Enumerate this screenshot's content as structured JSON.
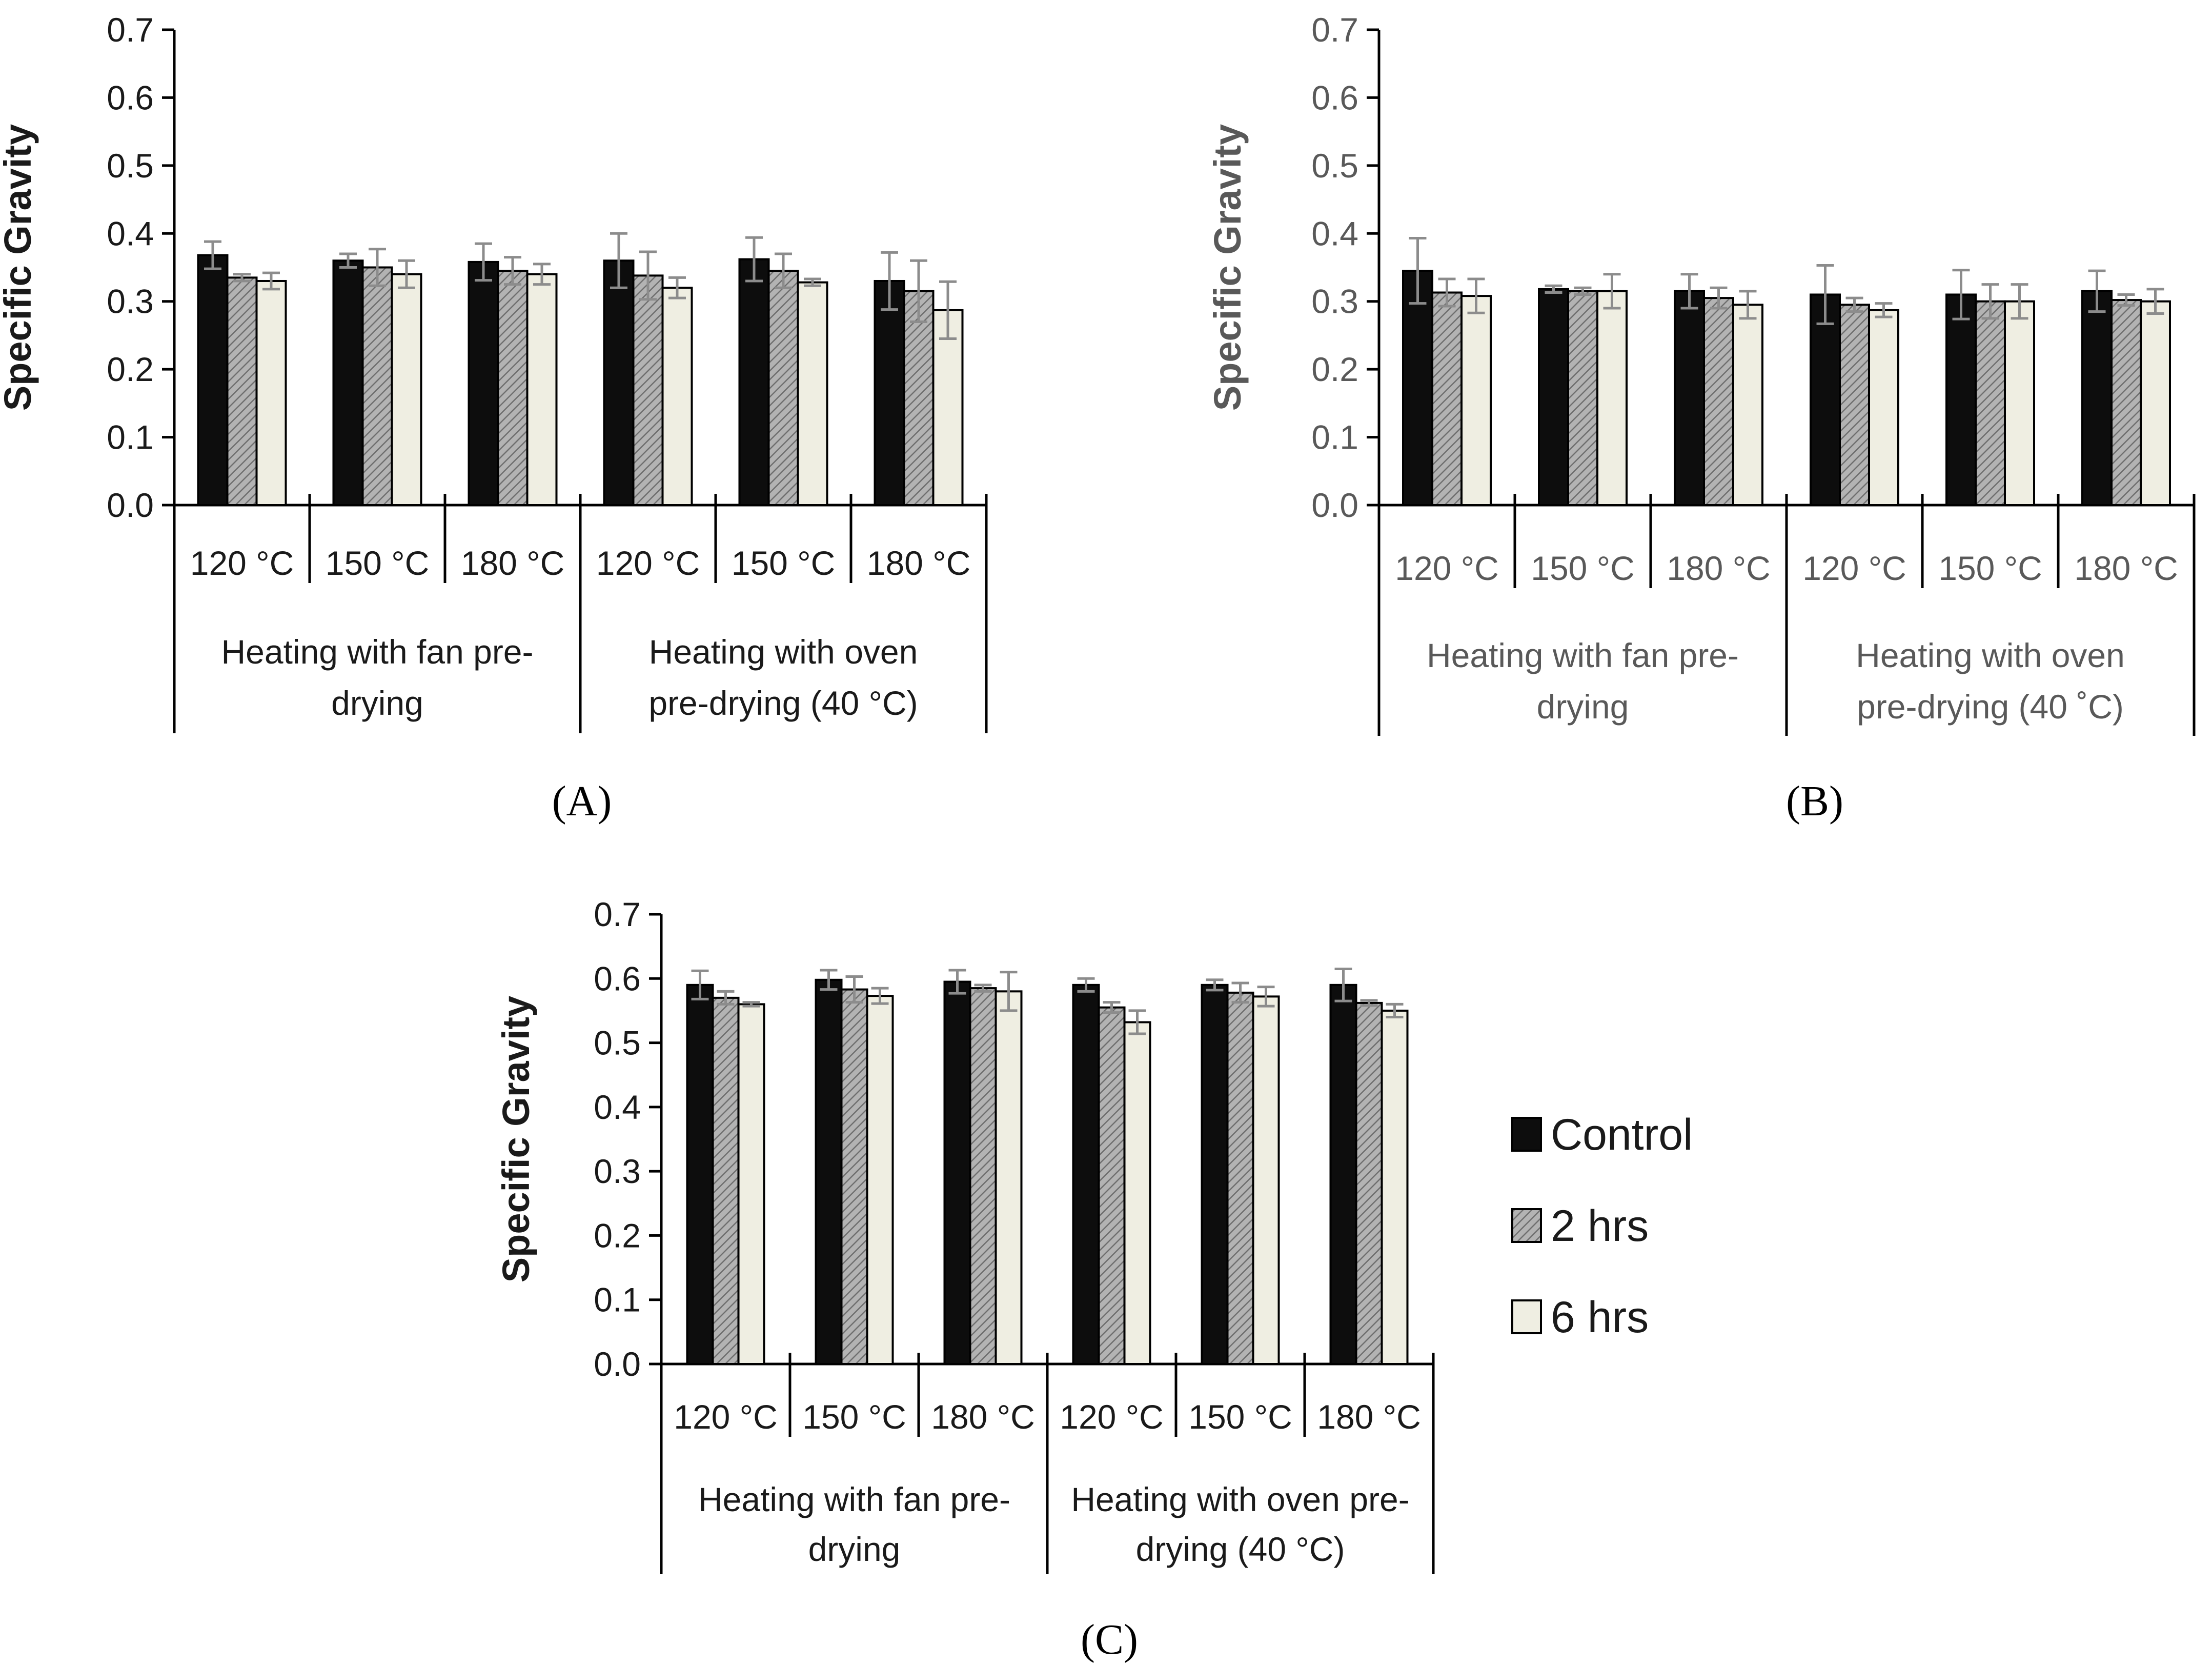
{
  "colors": {
    "control": "#0d0d0d",
    "hrs2": "#a6a6a6",
    "hrs6": "#efeee2",
    "error_bar": "#8c8c8c",
    "text_dark": "#1a1a1a",
    "text_grey": "#595959"
  },
  "legend": {
    "placement": "right of panel C",
    "entries": [
      {
        "key": "control",
        "label": "Control",
        "pattern": "solid"
      },
      {
        "key": "hrs2",
        "label": "2 hrs",
        "pattern": "hatched"
      },
      {
        "key": "hrs6",
        "label": "6 hrs",
        "pattern": "solid"
      }
    ]
  },
  "chart_data": [
    {
      "type": "bar",
      "panel_label": "(A)",
      "ylabel": "Specific Gravity",
      "ylim": [
        0,
        0.7
      ],
      "yticks": [
        "0.0",
        "0.1",
        "0.2",
        "0.3",
        "0.4",
        "0.5",
        "0.6",
        "0.7"
      ],
      "grid": false,
      "categories": [
        "120 °C",
        "150 °C",
        "180 °C",
        "120 °C",
        "150 °C",
        "180 °C"
      ],
      "groups": [
        {
          "label_lines": [
            "Heating with fan pre-",
            "drying"
          ],
          "span": 3
        },
        {
          "label_lines": [
            "Heating with oven",
            "pre-drying (40 °C)"
          ],
          "span": 3
        }
      ],
      "series": [
        {
          "name": "Control",
          "key": "control",
          "values": [
            0.368,
            0.36,
            0.358,
            0.36,
            0.362,
            0.33
          ],
          "errors": [
            0.02,
            0.01,
            0.027,
            0.04,
            0.032,
            0.042
          ]
        },
        {
          "name": "2 hrs",
          "key": "hrs2",
          "values": [
            0.335,
            0.35,
            0.345,
            0.338,
            0.345,
            0.315
          ],
          "errors": [
            0.005,
            0.027,
            0.02,
            0.035,
            0.025,
            0.045
          ]
        },
        {
          "name": "6 hrs",
          "key": "hrs6",
          "values": [
            0.33,
            0.34,
            0.34,
            0.32,
            0.328,
            0.287
          ],
          "errors": [
            0.012,
            0.02,
            0.015,
            0.015,
            0.005,
            0.042
          ]
        }
      ]
    },
    {
      "type": "bar",
      "panel_label": "(B)",
      "ylabel": "Specific Gravity",
      "ylim": [
        0,
        0.7
      ],
      "yticks": [
        "0.0",
        "0.1",
        "0.2",
        "0.3",
        "0.4",
        "0.5",
        "0.6",
        "0.7"
      ],
      "grid": false,
      "categories": [
        "120 °C",
        "150 °C",
        "180 °C",
        "120 °C",
        "150 °C",
        "180 °C"
      ],
      "groups": [
        {
          "label_lines": [
            "Heating with fan pre-",
            "drying"
          ],
          "span": 3
        },
        {
          "label_lines": [
            "Heating with oven",
            "pre-drying  (40 ˚C)"
          ],
          "span": 3
        }
      ],
      "series": [
        {
          "name": "Control",
          "key": "control",
          "values": [
            0.345,
            0.318,
            0.315,
            0.31,
            0.31,
            0.315
          ],
          "errors": [
            0.048,
            0.005,
            0.025,
            0.043,
            0.036,
            0.03
          ]
        },
        {
          "name": "2 hrs",
          "key": "hrs2",
          "values": [
            0.313,
            0.315,
            0.305,
            0.295,
            0.3,
            0.302
          ],
          "errors": [
            0.02,
            0.005,
            0.015,
            0.01,
            0.025,
            0.008
          ]
        },
        {
          "name": "6 hrs",
          "key": "hrs6",
          "values": [
            0.308,
            0.315,
            0.295,
            0.287,
            0.3,
            0.3
          ],
          "errors": [
            0.025,
            0.025,
            0.02,
            0.01,
            0.025,
            0.018
          ]
        }
      ]
    },
    {
      "type": "bar",
      "panel_label": "(C)",
      "ylabel": "Specific Gravity",
      "ylim": [
        0,
        0.7
      ],
      "yticks": [
        "0.0",
        "0.1",
        "0.2",
        "0.3",
        "0.4",
        "0.5",
        "0.6",
        "0.7"
      ],
      "grid": false,
      "categories": [
        "120 °C",
        "150 °C",
        "180 °C",
        "120 °C",
        "150 °C",
        "180 °C"
      ],
      "groups": [
        {
          "label_lines": [
            "Heating with fan pre-",
            "drying"
          ],
          "span": 3
        },
        {
          "label_lines": [
            "Heating with oven pre-",
            "drying (40 °C)"
          ],
          "span": 3
        }
      ],
      "series": [
        {
          "name": "Control",
          "key": "control",
          "values": [
            0.59,
            0.598,
            0.595,
            0.59,
            0.59,
            0.59
          ],
          "errors": [
            0.022,
            0.015,
            0.018,
            0.01,
            0.008,
            0.025
          ]
        },
        {
          "name": "2 hrs",
          "key": "hrs2",
          "values": [
            0.57,
            0.583,
            0.585,
            0.555,
            0.578,
            0.562
          ],
          "errors": [
            0.01,
            0.02,
            0.005,
            0.008,
            0.015,
            0.004
          ]
        },
        {
          "name": "6 hrs",
          "key": "hrs6",
          "values": [
            0.56,
            0.573,
            0.58,
            0.532,
            0.572,
            0.55
          ],
          "errors": [
            0.003,
            0.012,
            0.03,
            0.018,
            0.015,
            0.01
          ]
        }
      ]
    }
  ]
}
